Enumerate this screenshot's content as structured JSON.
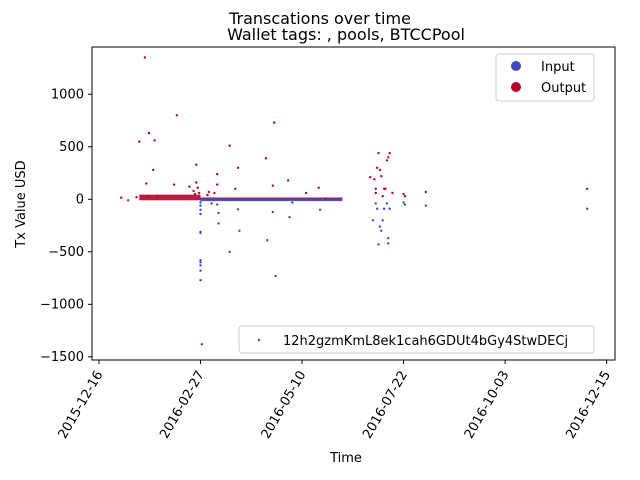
{
  "chart_data": {
    "type": "scatter",
    "title": "Transcations over time",
    "subtitle": "Wallet tags: , pools, BTCCPool",
    "xlabel": "Time",
    "ylabel": "Tx Value USD",
    "x_range": [
      "2015-12-11",
      "2016-12-21"
    ],
    "ylim": [
      -1530,
      1450
    ],
    "x_ticks": [
      "2015-12-16",
      "2016-02-27",
      "2016-05-10",
      "2016-07-22",
      "2016-10-03",
      "2016-12-15"
    ],
    "y_ticks": [
      -1500,
      -1000,
      -500,
      0,
      500,
      1000
    ],
    "grid": false,
    "legend_placement": "top-right",
    "legend_entries": [
      {
        "label": "Input",
        "color": "#3b4cc0"
      },
      {
        "label": "Output",
        "color": "#b40426"
      }
    ],
    "address_legend": {
      "label": "12h2gzmKmL8ek1cah6GDUt4bGy4StwDECj",
      "placement": "lower-right"
    },
    "series": [
      {
        "name": "Output",
        "color": "#b40426",
        "points": [
          [
            "2016-01-01",
            15
          ],
          [
            "2016-01-12",
            20
          ],
          [
            "2016-01-14",
            550
          ],
          [
            "2016-01-18",
            1350
          ],
          [
            "2016-01-19",
            150
          ],
          [
            "2016-01-20",
            30
          ],
          [
            "2016-01-21",
            630
          ],
          [
            "2016-01-24",
            280
          ],
          [
            "2016-01-25",
            560
          ],
          [
            "2016-01-27",
            25
          ],
          [
            "2016-02-08",
            140
          ],
          [
            "2016-02-10",
            800
          ],
          [
            "2016-02-19",
            120
          ],
          [
            "2016-02-22",
            80
          ],
          [
            "2016-02-23",
            50
          ],
          [
            "2016-02-24",
            330
          ],
          [
            "2016-02-24",
            160
          ],
          [
            "2016-02-25",
            110
          ],
          [
            "2016-02-26",
            60
          ],
          [
            "2016-03-03",
            40
          ],
          [
            "2016-03-04",
            70
          ],
          [
            "2016-03-08",
            60
          ],
          [
            "2016-03-10",
            240
          ],
          [
            "2016-03-10",
            140
          ],
          [
            "2016-03-19",
            510
          ],
          [
            "2016-03-23",
            100
          ],
          [
            "2016-03-25",
            300
          ],
          [
            "2016-04-14",
            390
          ],
          [
            "2016-04-19",
            130
          ],
          [
            "2016-04-20",
            730
          ],
          [
            "2016-04-30",
            180
          ],
          [
            "2016-05-13",
            60
          ],
          [
            "2016-05-22",
            110
          ],
          [
            "2016-05-27",
            8
          ],
          [
            "2016-06-28",
            210
          ],
          [
            "2016-07-01",
            190
          ],
          [
            "2016-07-02",
            60
          ],
          [
            "2016-07-02",
            100
          ],
          [
            "2016-07-03",
            300
          ],
          [
            "2016-07-04",
            440
          ],
          [
            "2016-07-05",
            280
          ],
          [
            "2016-07-06",
            220
          ],
          [
            "2016-07-07",
            30
          ],
          [
            "2016-07-08",
            100
          ],
          [
            "2016-07-09",
            100
          ],
          [
            "2016-07-10",
            370
          ],
          [
            "2016-07-11",
            400
          ],
          [
            "2016-07-12",
            440
          ],
          [
            "2016-07-14",
            60
          ],
          [
            "2016-07-22",
            50
          ],
          [
            "2016-07-23",
            30
          ],
          [
            "2016-08-07",
            70
          ],
          [
            "2016-12-01",
            100
          ]
        ],
        "dense_bands": [
          {
            "from": "2016-01-14",
            "to": "2016-02-27",
            "min": 0,
            "max": 35
          },
          {
            "from": "2016-02-27",
            "to": "2016-06-08",
            "min": 0,
            "max": 8
          }
        ]
      },
      {
        "name": "Input",
        "color": "#3b4cc0",
        "points": [
          [
            "2016-01-06",
            -10
          ],
          [
            "2016-02-27",
            -30
          ],
          [
            "2016-02-27",
            -60
          ],
          [
            "2016-02-27",
            -100
          ],
          [
            "2016-02-27",
            -140
          ],
          [
            "2016-02-27",
            -310
          ],
          [
            "2016-02-27",
            -320
          ],
          [
            "2016-02-27",
            -580
          ],
          [
            "2016-02-27",
            -600
          ],
          [
            "2016-02-27",
            -630
          ],
          [
            "2016-02-27",
            -680
          ],
          [
            "2016-02-27",
            -770
          ],
          [
            "2016-02-28",
            -1380
          ],
          [
            "2016-03-06",
            -40
          ],
          [
            "2016-03-10",
            -50
          ],
          [
            "2016-03-11",
            -130
          ],
          [
            "2016-03-11",
            -230
          ],
          [
            "2016-03-19",
            -500
          ],
          [
            "2016-03-25",
            -95
          ],
          [
            "2016-03-26",
            -300
          ],
          [
            "2016-04-15",
            -390
          ],
          [
            "2016-04-19",
            -120
          ],
          [
            "2016-04-21",
            -730
          ],
          [
            "2016-05-01",
            -170
          ],
          [
            "2016-05-03",
            -30
          ],
          [
            "2016-05-23",
            -100
          ],
          [
            "2016-06-30",
            -200
          ],
          [
            "2016-07-02",
            -40
          ],
          [
            "2016-07-03",
            -90
          ],
          [
            "2016-07-04",
            -430
          ],
          [
            "2016-07-05",
            -260
          ],
          [
            "2016-07-06",
            -300
          ],
          [
            "2016-07-07",
            -200
          ],
          [
            "2016-07-08",
            -90
          ],
          [
            "2016-07-10",
            -40
          ],
          [
            "2016-07-11",
            -420
          ],
          [
            "2016-07-11",
            -370
          ],
          [
            "2016-07-12",
            -90
          ],
          [
            "2016-07-22",
            -30
          ],
          [
            "2016-07-23",
            -50
          ],
          [
            "2016-08-07",
            -60
          ],
          [
            "2016-12-01",
            -90
          ]
        ],
        "dense_bands": [
          {
            "from": "2016-02-27",
            "to": "2016-06-08",
            "min": -8,
            "max": 0
          }
        ]
      }
    ]
  }
}
